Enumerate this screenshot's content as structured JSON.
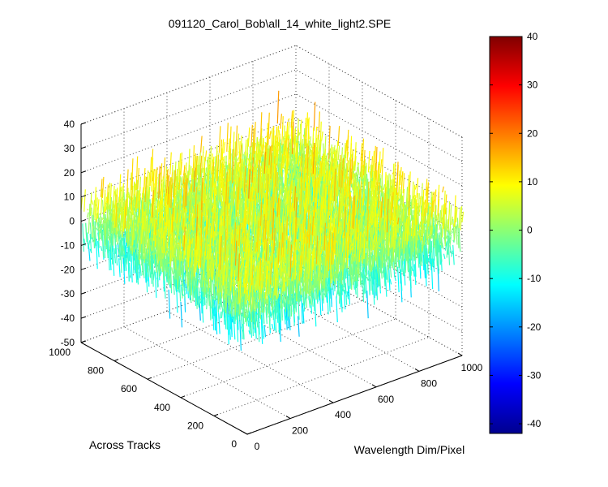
{
  "chart_data": {
    "type": "surface",
    "title": "091120_Carol_Bob\\all_14_white_light2.SPE",
    "xlabel": "Wavelength Dim/Pixel",
    "ylabel": "Across Tracks",
    "zlabel": "",
    "xlim": [
      0,
      1000
    ],
    "ylim": [
      0,
      1000
    ],
    "zlim": [
      -50,
      40
    ],
    "xticks": [
      "0",
      "200",
      "400",
      "600",
      "800",
      "1000"
    ],
    "yticks": [
      "0",
      "200",
      "400",
      "600",
      "800",
      "1000"
    ],
    "zticks": [
      "40",
      "30",
      "20",
      "10",
      "0",
      "-10",
      "-20",
      "-30",
      "-40",
      "-50"
    ],
    "colorbar": {
      "clim": [
        -42,
        40
      ],
      "ticks": [
        "40",
        "30",
        "20",
        "10",
        "0",
        "-10",
        "-20",
        "-30",
        "-40"
      ],
      "colormap": "jet"
    },
    "data_description_values": {
      "mean": 0,
      "min": -50,
      "max": 40
    },
    "grid": true,
    "box": true
  }
}
